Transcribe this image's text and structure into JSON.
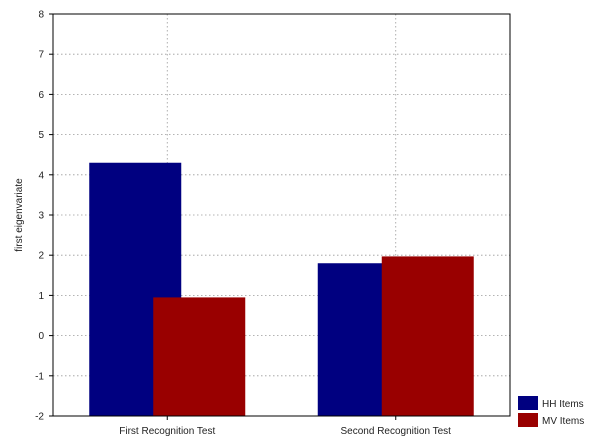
{
  "chart_data": {
    "type": "bar",
    "title": "",
    "xlabel": "",
    "ylabel": "first eigenvariate",
    "ylim": [
      -2,
      8
    ],
    "yticks": [
      -2,
      -1,
      0,
      1,
      2,
      3,
      4,
      5,
      6,
      7,
      8
    ],
    "grid": true,
    "legend_position": "bottom-right",
    "categories": [
      "First Recognition Test",
      "Second Recognition Test"
    ],
    "series": [
      {
        "name": "HH Items",
        "color": "#000080",
        "values": [
          4.3,
          1.8
        ]
      },
      {
        "name": "MV Items",
        "color": "#990000",
        "values": [
          0.95,
          1.97
        ]
      }
    ]
  }
}
